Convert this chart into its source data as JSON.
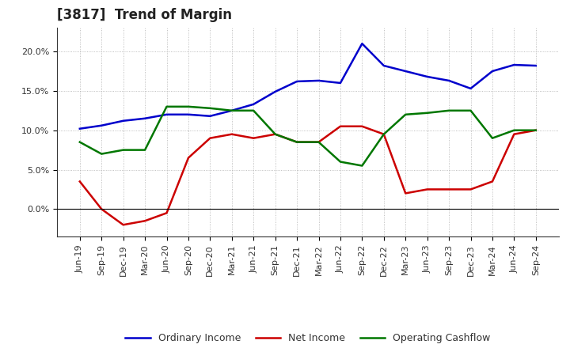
{
  "title": "[3817]  Trend of Margin",
  "x_labels": [
    "Jun-19",
    "Sep-19",
    "Dec-19",
    "Mar-20",
    "Jun-20",
    "Sep-20",
    "Dec-20",
    "Mar-21",
    "Jun-21",
    "Sep-21",
    "Dec-21",
    "Mar-22",
    "Jun-22",
    "Sep-22",
    "Dec-22",
    "Mar-23",
    "Jun-23",
    "Sep-23",
    "Dec-23",
    "Mar-24",
    "Jun-24",
    "Sep-24"
  ],
  "ordinary_income": [
    10.2,
    10.6,
    11.2,
    11.5,
    12.0,
    12.0,
    11.8,
    12.5,
    13.3,
    14.9,
    16.2,
    16.3,
    16.0,
    21.0,
    18.2,
    17.5,
    16.8,
    16.3,
    15.3,
    17.5,
    18.3,
    18.2
  ],
  "net_income": [
    3.5,
    0.0,
    -2.0,
    -1.5,
    -0.5,
    6.5,
    9.0,
    9.5,
    9.0,
    9.5,
    8.5,
    8.5,
    10.5,
    10.5,
    9.5,
    2.0,
    2.5,
    2.5,
    2.5,
    3.5,
    9.5,
    10.0
  ],
  "operating_cashflow": [
    8.5,
    7.0,
    7.5,
    7.5,
    13.0,
    13.0,
    12.8,
    12.5,
    12.5,
    9.5,
    8.5,
    8.5,
    6.0,
    5.5,
    9.5,
    12.0,
    12.2,
    12.5,
    12.5,
    9.0,
    10.0,
    10.0
  ],
  "ordinary_income_color": "#0000CC",
  "net_income_color": "#CC0000",
  "operating_cashflow_color": "#007700",
  "ylim_min": -3.5,
  "ylim_max": 23.0,
  "background_color": "#FFFFFF",
  "grid_color": "#999999",
  "line_width": 1.8,
  "title_fontsize": 12,
  "tick_fontsize": 8,
  "legend_fontsize": 9
}
